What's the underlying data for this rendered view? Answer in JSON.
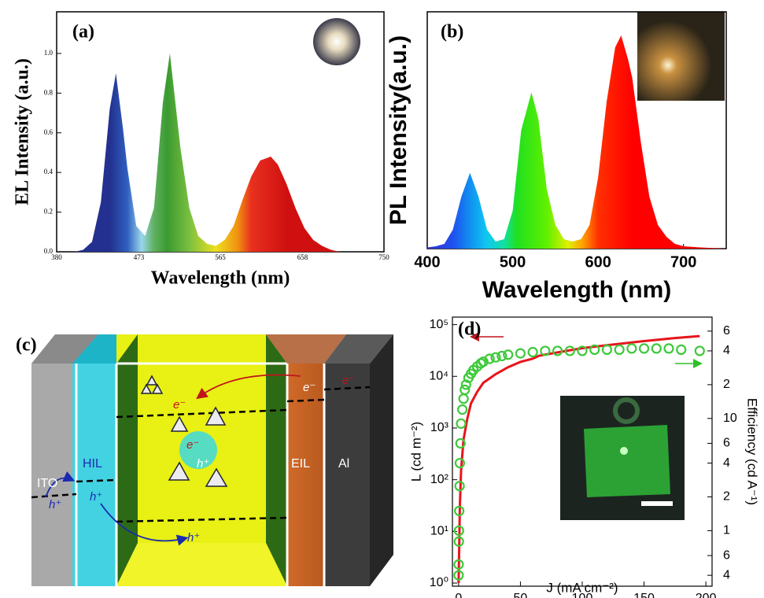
{
  "chart_data": [
    {
      "type": "area",
      "label": "(a)",
      "ylabel": "EL Intensity (a.u.)",
      "xlabel": "Wavelength (nm)",
      "x": [
        380,
        390,
        400,
        410,
        420,
        430,
        440,
        447,
        455,
        460,
        470,
        480,
        490,
        500,
        508,
        515,
        520,
        530,
        540,
        550,
        560,
        570,
        580,
        590,
        600,
        610,
        622,
        630,
        640,
        650,
        660,
        670,
        680,
        690,
        700,
        720,
        750
      ],
      "values": [
        0,
        0,
        0,
        0.01,
        0.05,
        0.25,
        0.72,
        0.9,
        0.62,
        0.42,
        0.13,
        0.08,
        0.22,
        0.75,
        1.0,
        0.72,
        0.52,
        0.22,
        0.08,
        0.04,
        0.03,
        0.06,
        0.13,
        0.26,
        0.38,
        0.46,
        0.48,
        0.44,
        0.34,
        0.22,
        0.12,
        0.06,
        0.03,
        0.01,
        0,
        0,
        0
      ],
      "xlim": [
        380,
        750
      ],
      "ylim": [
        0,
        1.21
      ],
      "xticks": [
        380,
        473,
        565,
        658,
        750
      ],
      "yticks": [
        {
          "value": 0,
          "label": "0.0"
        },
        0.2,
        0.4,
        0.6,
        0.8,
        {
          "value": 1,
          "label": "1.0"
        }
      ]
    },
    {
      "type": "area",
      "label": "(b)",
      "ylabel": "PL Intensity(a.u.)",
      "xlabel": "Wavelength (nm)",
      "x": [
        400,
        410,
        420,
        430,
        440,
        450,
        460,
        470,
        480,
        490,
        500,
        510,
        522,
        530,
        540,
        550,
        560,
        570,
        580,
        590,
        600,
        610,
        620,
        627,
        635,
        640,
        650,
        660,
        670,
        680,
        690,
        700,
        720,
        750
      ],
      "values": [
        0.005,
        0.01,
        0.02,
        0.08,
        0.22,
        0.32,
        0.22,
        0.08,
        0.03,
        0.04,
        0.16,
        0.5,
        0.66,
        0.55,
        0.25,
        0.1,
        0.04,
        0.03,
        0.04,
        0.1,
        0.3,
        0.62,
        0.85,
        0.9,
        0.8,
        0.72,
        0.45,
        0.22,
        0.1,
        0.05,
        0.02,
        0.01,
        0.005,
        0
      ],
      "xlim": [
        400,
        750
      ],
      "ylim": [
        0,
        1
      ],
      "xticks": [
        400,
        500,
        600,
        700
      ]
    },
    {
      "type": "line",
      "label": "(d)",
      "xlabel": "J (mA cm⁻²)",
      "ylabel": "L (cd m⁻²)",
      "y2label": "Efficiency (cd A⁻¹)",
      "xlim": [
        -5,
        205
      ],
      "xticks": [
        0,
        50,
        100,
        150,
        200
      ],
      "ylim": [
        0.87,
        140000
      ],
      "ylog": true,
      "yticks": [
        {
          "value": 1,
          "label": "10⁰"
        },
        {
          "value": 10,
          "label": "10¹"
        },
        {
          "value": 100,
          "label": "10²"
        },
        {
          "value": 1000,
          "label": "10³"
        },
        {
          "value": 10000,
          "label": "10⁴"
        },
        {
          "value": 100000,
          "label": "10⁵"
        }
      ],
      "y2lim": [
        0.32,
        80
      ],
      "y2log": true,
      "y2ticks": [
        {
          "value": 60,
          "label": "6"
        },
        {
          "value": 40,
          "label": "4"
        },
        {
          "value": 20,
          "label": "2"
        },
        10,
        6,
        4,
        2,
        1,
        {
          "value": 0.6,
          "label": "6"
        },
        {
          "value": 0.4,
          "label": "4"
        }
      ],
      "series": [
        {
          "type": "line",
          "color": "#e8141c",
          "x": [
            0,
            0.5,
            1,
            2,
            4,
            7,
            10,
            15,
            20,
            30,
            40,
            50,
            60,
            65,
            80,
            100,
            120,
            150,
            175,
            195
          ],
          "values": [
            1,
            5,
            30,
            150,
            600,
            1500,
            3000,
            5000,
            7500,
            11000,
            15000,
            19000,
            22000,
            25000,
            29000,
            35000,
            40000,
            48000,
            55000,
            60000
          ]
        },
        {
          "type": "scatter",
          "color": "#3ec93a",
          "axis": "y2",
          "x": [
            0,
            0,
            0.2,
            0.3,
            0.5,
            0.8,
            1,
            1.5,
            2,
            3,
            4,
            5,
            6,
            8,
            10,
            12,
            15,
            18,
            20,
            25,
            30,
            35,
            40,
            50,
            60,
            70,
            80,
            90,
            100,
            110,
            120,
            130,
            140,
            150,
            160,
            170,
            180,
            195
          ],
          "values": [
            0.4,
            0.5,
            0.8,
            1,
            1.5,
            2.5,
            4,
            6,
            9,
            12,
            15,
            18,
            20,
            23,
            25,
            27,
            29,
            31,
            32,
            34,
            35,
            36,
            37,
            38,
            39,
            40,
            40,
            40,
            40,
            41,
            41,
            41,
            42,
            42,
            42,
            42,
            41,
            40
          ]
        }
      ]
    }
  ],
  "diagram": {
    "label": "(c)",
    "layers": [
      "ITO",
      "HIL",
      "EIL",
      "Al"
    ],
    "carriers": [
      "e⁻",
      "e⁻",
      "e⁻",
      "e⁻",
      "h⁺",
      "h⁺",
      "h⁺",
      "h⁺"
    ]
  }
}
